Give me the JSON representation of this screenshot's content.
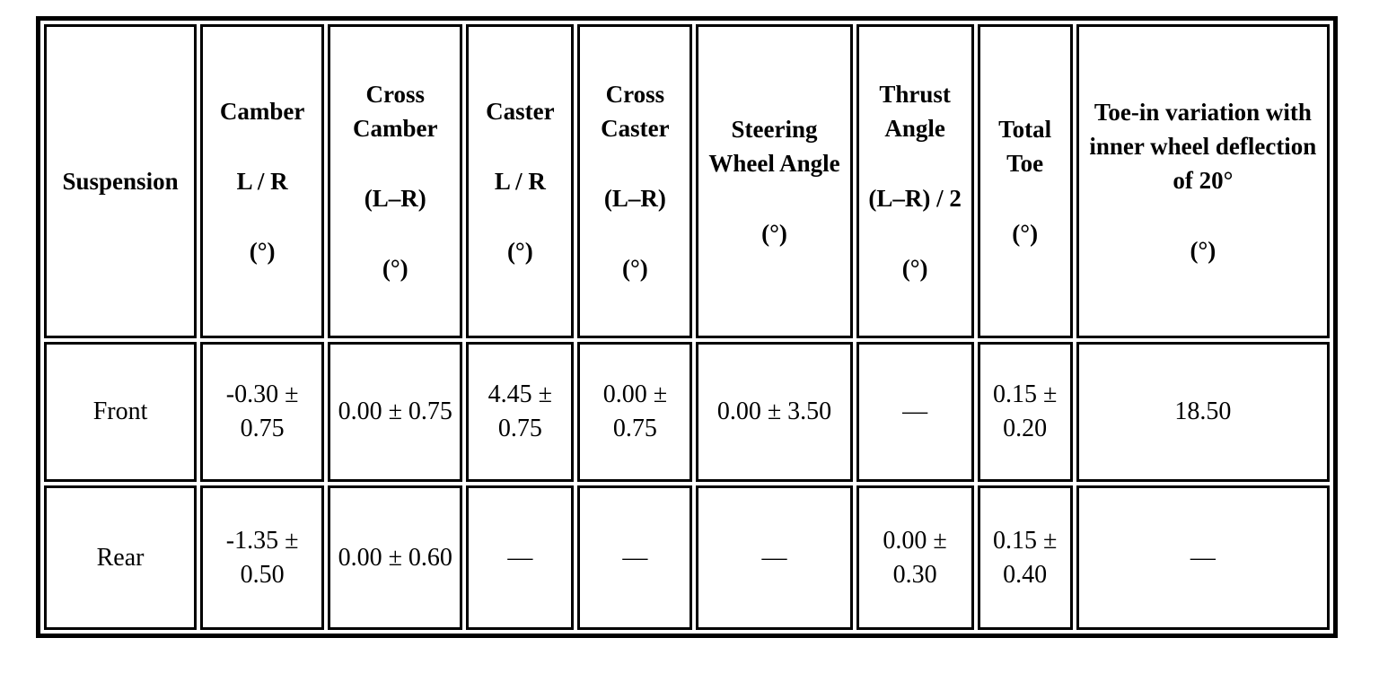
{
  "table": {
    "header": [
      [
        "Suspension"
      ],
      [
        "Camber",
        "L  /  R",
        "(°)"
      ],
      [
        "Cross Camber",
        "(L–R)",
        "(°)"
      ],
      [
        "Caster",
        "L  /  R",
        "(°)"
      ],
      [
        "Cross Caster",
        "(L–R)",
        "(°)"
      ],
      [
        "Steering Wheel Angle",
        "(°)"
      ],
      [
        "Thrust Angle",
        "(L–R) / 2",
        "(°)"
      ],
      [
        "Total Toe",
        "(°)"
      ],
      [
        "Toe-in variation with inner wheel deflection of 20°",
        "(°)"
      ]
    ],
    "rows": [
      [
        "Front",
        "-0.30 ± 0.75",
        "0.00 ± 0.75",
        "4.45 ± 0.75",
        "0.00 ± 0.75",
        "0.00 ± 3.50",
        "—",
        "0.15 ± 0.20",
        "18.50"
      ],
      [
        "Rear",
        "-1.35 ± 0.50",
        "0.00 ± 0.60",
        "—",
        "—",
        "—",
        "0.00 ± 0.30",
        "0.15 ± 0.40",
        "—"
      ]
    ]
  }
}
